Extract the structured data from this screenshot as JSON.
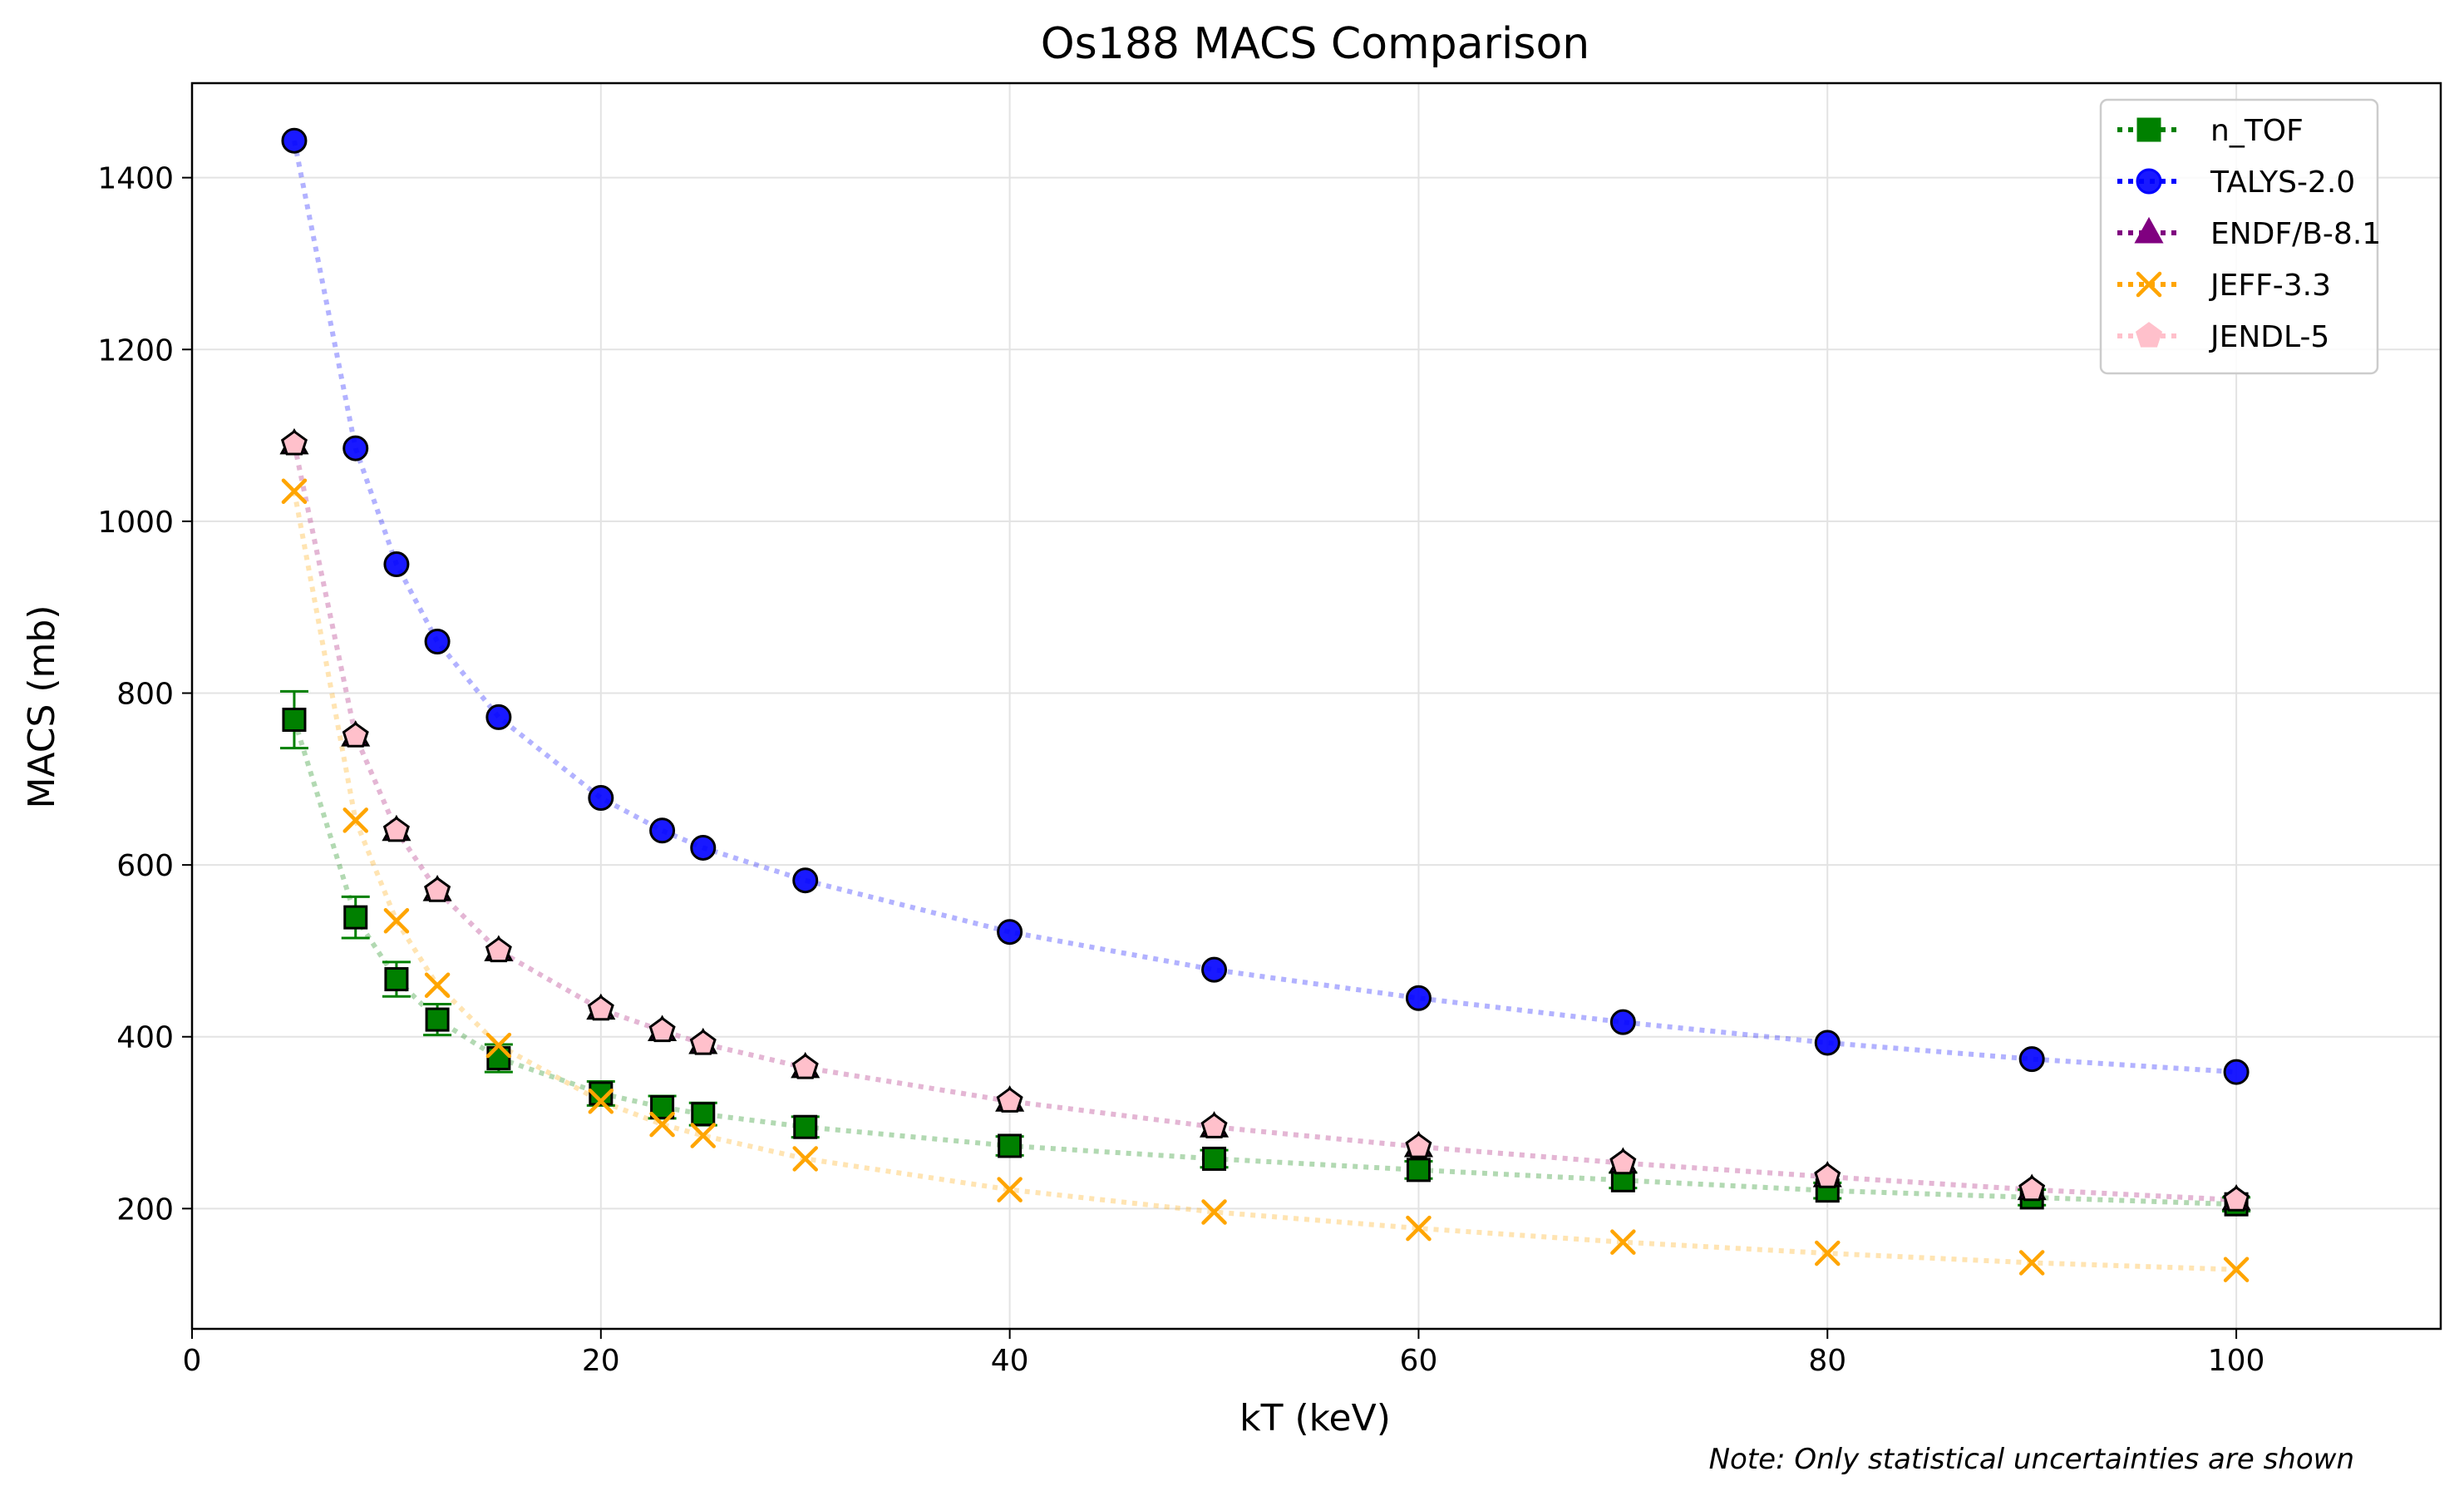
{
  "chart_data": {
    "type": "line",
    "title": "Os188 MACS Comparison",
    "xlabel": "kT (keV)",
    "ylabel": "MACS (mb)",
    "xlim": [
      0,
      110
    ],
    "ylim": [
      60,
      1510
    ],
    "xticks": [
      0,
      20,
      40,
      60,
      80,
      100
    ],
    "yticks": [
      200,
      400,
      600,
      800,
      1000,
      1200,
      1400
    ],
    "grid": true,
    "legend_position": "top-right",
    "note": "Note: Only statistical uncertainties are shown",
    "x": [
      5,
      8,
      10,
      12,
      15,
      20,
      23,
      25,
      30,
      40,
      50,
      60,
      70,
      80,
      90,
      100
    ],
    "series": [
      {
        "name": "n_TOF",
        "color": "#008000",
        "marker": "square",
        "values": [
          769,
          539,
          467,
          420,
          375,
          334,
          318,
          310,
          295,
          273,
          258,
          245,
          233,
          221,
          213,
          205
        ],
        "errors": [
          33,
          24,
          20,
          18,
          16,
          14,
          13,
          13,
          12,
          11,
          10,
          10,
          9,
          9,
          9,
          8
        ]
      },
      {
        "name": "TALYS-2.0",
        "color": "#0000ff",
        "marker": "circle",
        "values": [
          1443,
          1085,
          950,
          860,
          772,
          678,
          640,
          620,
          582,
          522,
          478,
          445,
          417,
          393,
          374,
          359
        ]
      },
      {
        "name": "ENDF/B-8.1",
        "color": "#800080",
        "marker": "triangle",
        "values": [
          1090,
          750,
          640,
          570,
          500,
          432,
          407,
          392,
          364,
          325,
          295,
          272,
          253,
          237,
          222,
          210
        ]
      },
      {
        "name": "JEFF-3.3",
        "color": "#ffa500",
        "marker": "x",
        "values": [
          1035,
          652,
          535,
          460,
          390,
          325,
          298,
          285,
          258,
          222,
          196,
          177,
          161,
          148,
          137,
          129
        ]
      },
      {
        "name": "JENDL-5",
        "color": "#ffc0cb",
        "marker": "pentagon",
        "values": [
          1090,
          750,
          640,
          570,
          500,
          432,
          407,
          392,
          364,
          325,
          295,
          272,
          253,
          237,
          222,
          210
        ]
      }
    ]
  }
}
